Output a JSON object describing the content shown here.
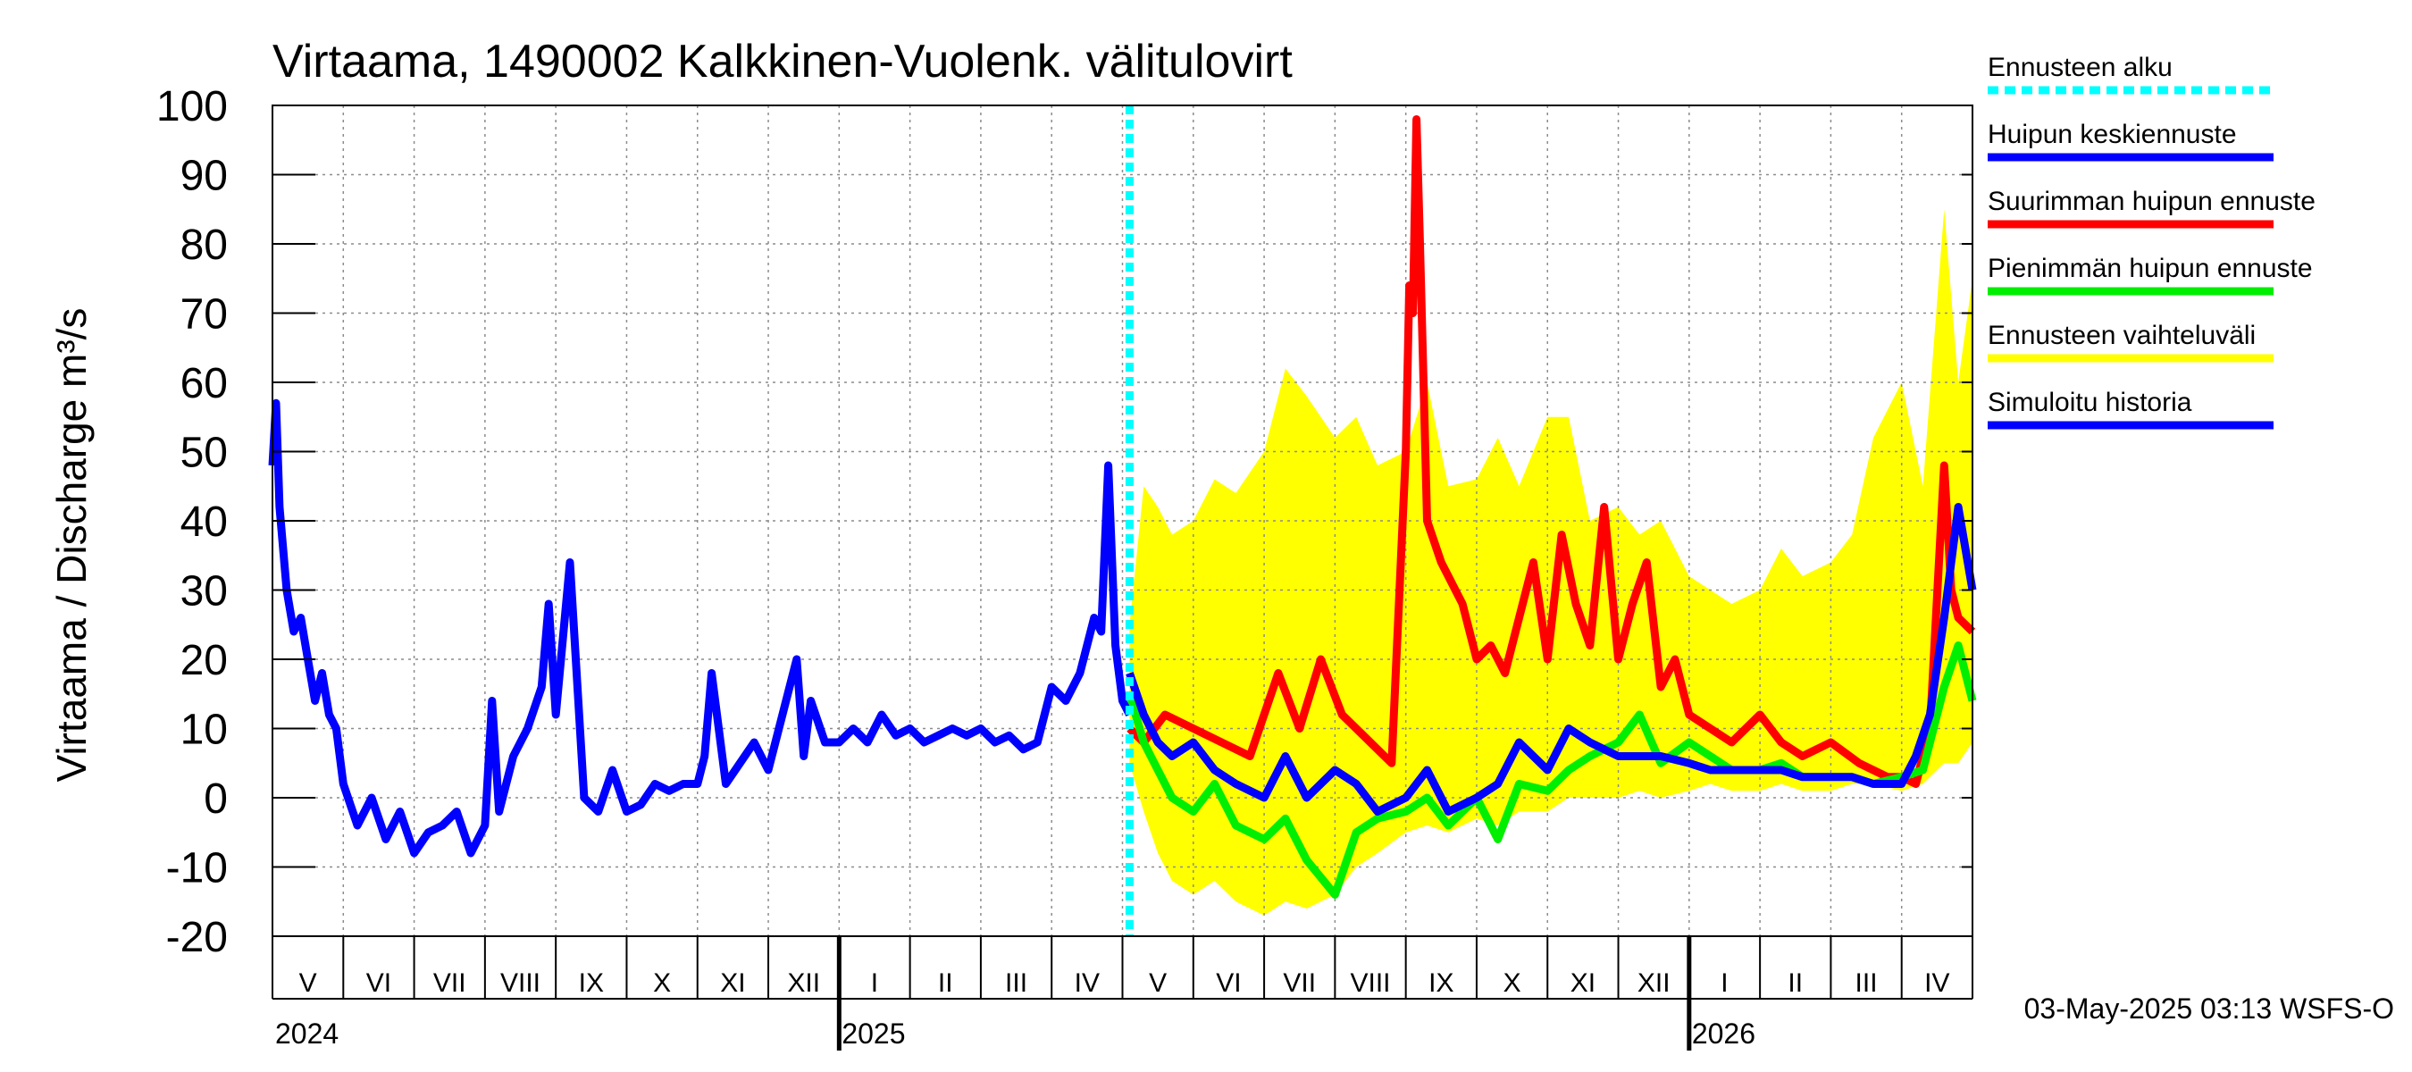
{
  "chart_data": {
    "type": "line",
    "title": "Virtaama, 1490002 Kalkkinen-Vuolenk. välitulovirt",
    "ylabel": "Virtaama / Discharge    m³/s",
    "ylim": [
      -20,
      100
    ],
    "yticks": [
      -20,
      -10,
      0,
      10,
      20,
      30,
      40,
      50,
      60,
      70,
      80,
      90,
      100
    ],
    "x_range_months": [
      0,
      24
    ],
    "x_origin": "2024-05-01",
    "forecast_start_month": 12.1,
    "months": [
      {
        "label": "V",
        "m": 0
      },
      {
        "label": "VI",
        "m": 1
      },
      {
        "label": "VII",
        "m": 2
      },
      {
        "label": "VIII",
        "m": 3
      },
      {
        "label": "IX",
        "m": 4
      },
      {
        "label": "X",
        "m": 5
      },
      {
        "label": "XI",
        "m": 6
      },
      {
        "label": "XII",
        "m": 7
      },
      {
        "label": "I",
        "m": 8
      },
      {
        "label": "II",
        "m": 9
      },
      {
        "label": "III",
        "m": 10
      },
      {
        "label": "IV",
        "m": 11
      },
      {
        "label": "V",
        "m": 12
      },
      {
        "label": "VI",
        "m": 13
      },
      {
        "label": "VII",
        "m": 14
      },
      {
        "label": "VIII",
        "m": 15
      },
      {
        "label": "IX",
        "m": 16
      },
      {
        "label": "X",
        "m": 17
      },
      {
        "label": "XI",
        "m": 18
      },
      {
        "label": "XII",
        "m": 19
      },
      {
        "label": "I",
        "m": 20
      },
      {
        "label": "II",
        "m": 21
      },
      {
        "label": "III",
        "m": 22
      },
      {
        "label": "IV",
        "m": 23
      }
    ],
    "years": [
      {
        "label": "2024",
        "m": 0
      },
      {
        "label": "2025",
        "m": 8
      },
      {
        "label": "2026",
        "m": 20
      }
    ],
    "series": [
      {
        "name": "Ennusteen vaihteluväli",
        "type": "band",
        "color": "#ffff00",
        "x": [
          12.1,
          12.3,
          12.5,
          12.7,
          13.0,
          13.3,
          13.6,
          14.0,
          14.3,
          14.6,
          15.0,
          15.3,
          15.6,
          16.0,
          16.3,
          16.6,
          17.0,
          17.3,
          17.6,
          18.0,
          18.3,
          18.6,
          19.0,
          19.3,
          19.6,
          20.0,
          20.3,
          20.6,
          21.0,
          21.3,
          21.6,
          22.0,
          22.3,
          22.6,
          23.0,
          23.3,
          23.6,
          23.8,
          24.0
        ],
        "upper": [
          25,
          45,
          42,
          38,
          40,
          46,
          44,
          50,
          62,
          58,
          52,
          55,
          48,
          50,
          60,
          45,
          46,
          52,
          45,
          55,
          55,
          40,
          42,
          38,
          40,
          32,
          30,
          28,
          30,
          36,
          32,
          34,
          38,
          52,
          60,
          45,
          85,
          60,
          75
        ],
        "lower": [
          5,
          -2,
          -8,
          -12,
          -14,
          -12,
          -15,
          -17,
          -15,
          -16,
          -14,
          -10,
          -8,
          -5,
          -4,
          -5,
          -3,
          -4,
          -2,
          -2,
          0,
          0,
          0,
          1,
          0,
          1,
          2,
          1,
          1,
          2,
          1,
          1,
          2,
          2,
          1,
          2,
          5,
          5,
          8
        ]
      },
      {
        "name": "Suurimman huipun ennuste",
        "color": "#ff0000",
        "x": [
          12.1,
          12.3,
          12.6,
          13.0,
          13.4,
          13.8,
          14.2,
          14.5,
          14.8,
          15.1,
          15.5,
          15.8,
          16.0,
          16.05,
          16.1,
          16.15,
          16.2,
          16.3,
          16.5,
          16.8,
          17.0,
          17.2,
          17.4,
          17.6,
          17.8,
          18.0,
          18.2,
          18.4,
          18.6,
          18.8,
          19.0,
          19.2,
          19.4,
          19.6,
          19.8,
          20.0,
          20.3,
          20.6,
          21.0,
          21.3,
          21.6,
          22.0,
          22.4,
          22.8,
          23.0,
          23.2,
          23.4,
          23.6,
          23.7,
          23.8,
          24.0
        ],
        "y": [
          10,
          8,
          12,
          10,
          8,
          6,
          18,
          10,
          20,
          12,
          8,
          5,
          50,
          74,
          70,
          98,
          80,
          40,
          34,
          28,
          20,
          22,
          18,
          26,
          34,
          20,
          38,
          28,
          22,
          42,
          20,
          28,
          34,
          16,
          20,
          12,
          10,
          8,
          12,
          8,
          6,
          8,
          5,
          3,
          3,
          2,
          10,
          48,
          30,
          26,
          24
        ]
      },
      {
        "name": "Pienimmän huipun ennuste",
        "color": "#00ee00",
        "x": [
          12.1,
          12.3,
          12.5,
          12.7,
          13.0,
          13.3,
          13.6,
          14.0,
          14.3,
          14.6,
          15.0,
          15.3,
          15.6,
          16.0,
          16.3,
          16.6,
          17.0,
          17.3,
          17.6,
          18.0,
          18.3,
          18.6,
          19.0,
          19.3,
          19.6,
          20.0,
          20.3,
          20.6,
          21.0,
          21.3,
          21.6,
          22.0,
          22.3,
          22.6,
          23.0,
          23.3,
          23.6,
          23.8,
          24.0
        ],
        "y": [
          15,
          8,
          4,
          0,
          -2,
          2,
          -4,
          -6,
          -3,
          -9,
          -14,
          -5,
          -3,
          -2,
          0,
          -4,
          0,
          -6,
          2,
          1,
          4,
          6,
          8,
          12,
          5,
          8,
          6,
          4,
          4,
          5,
          3,
          3,
          3,
          2,
          3,
          4,
          16,
          22,
          14
        ]
      },
      {
        "name": "Huipun keskiennuste",
        "color": "#0000ff",
        "x": [
          12.1,
          12.3,
          12.5,
          12.7,
          13.0,
          13.3,
          13.6,
          14.0,
          14.3,
          14.6,
          15.0,
          15.3,
          15.6,
          16.0,
          16.3,
          16.6,
          17.0,
          17.3,
          17.6,
          18.0,
          18.3,
          18.6,
          19.0,
          19.3,
          19.6,
          20.0,
          20.3,
          20.6,
          21.0,
          21.3,
          21.6,
          22.0,
          22.3,
          22.6,
          23.0,
          23.2,
          23.4,
          23.6,
          23.8,
          24.0
        ],
        "y": [
          18,
          12,
          8,
          6,
          8,
          4,
          2,
          0,
          6,
          0,
          4,
          2,
          -2,
          0,
          4,
          -2,
          0,
          2,
          8,
          4,
          10,
          8,
          6,
          6,
          6,
          5,
          4,
          4,
          4,
          4,
          3,
          3,
          3,
          2,
          2,
          6,
          12,
          26,
          42,
          30
        ]
      },
      {
        "name": "Simuloitu historia",
        "color": "#0000ff",
        "x": [
          0.0,
          0.05,
          0.1,
          0.2,
          0.3,
          0.4,
          0.5,
          0.6,
          0.7,
          0.8,
          0.9,
          1.0,
          1.2,
          1.4,
          1.6,
          1.8,
          2.0,
          2.2,
          2.4,
          2.6,
          2.8,
          3.0,
          3.1,
          3.2,
          3.4,
          3.6,
          3.8,
          3.9,
          4.0,
          4.2,
          4.4,
          4.6,
          4.8,
          5.0,
          5.2,
          5.4,
          5.6,
          5.8,
          6.0,
          6.1,
          6.2,
          6.4,
          6.6,
          6.8,
          7.0,
          7.2,
          7.4,
          7.5,
          7.6,
          7.8,
          8.0,
          8.2,
          8.4,
          8.6,
          8.8,
          9.0,
          9.2,
          9.4,
          9.6,
          9.8,
          10.0,
          10.2,
          10.4,
          10.6,
          10.8,
          11.0,
          11.2,
          11.4,
          11.6,
          11.7,
          11.8,
          11.9,
          12.0,
          12.1
        ],
        "y": [
          48,
          57,
          42,
          30,
          24,
          26,
          20,
          14,
          18,
          12,
          10,
          2,
          -4,
          0,
          -6,
          -2,
          -8,
          -5,
          -4,
          -2,
          -8,
          -4,
          14,
          -2,
          6,
          10,
          16,
          28,
          12,
          34,
          0,
          -2,
          4,
          -2,
          -1,
          2,
          1,
          2,
          2,
          6,
          18,
          2,
          5,
          8,
          4,
          12,
          20,
          6,
          14,
          8,
          8,
          10,
          8,
          12,
          9,
          10,
          8,
          9,
          10,
          9,
          10,
          8,
          9,
          7,
          8,
          16,
          14,
          18,
          26,
          24,
          48,
          22,
          14,
          12
        ]
      }
    ],
    "legend": {
      "placement": "right",
      "items": [
        {
          "label": "Ennusteen alku",
          "color": "#00ffff",
          "style": "dashed"
        },
        {
          "label": "Huipun keskiennuste",
          "color": "#0000ff",
          "style": "solid"
        },
        {
          "label": "Suurimman huipun ennuste",
          "color": "#ff0000",
          "style": "solid"
        },
        {
          "label": "Pienimmän huipun ennuste",
          "color": "#00ee00",
          "style": "solid"
        },
        {
          "label": "Ennusteen vaihteluväli",
          "color": "#ffff00",
          "style": "solid"
        },
        {
          "label": "Simuloitu historia",
          "color": "#0000ff",
          "style": "solid"
        }
      ]
    },
    "footer": "03-May-2025 03:13 WSFS-O"
  }
}
